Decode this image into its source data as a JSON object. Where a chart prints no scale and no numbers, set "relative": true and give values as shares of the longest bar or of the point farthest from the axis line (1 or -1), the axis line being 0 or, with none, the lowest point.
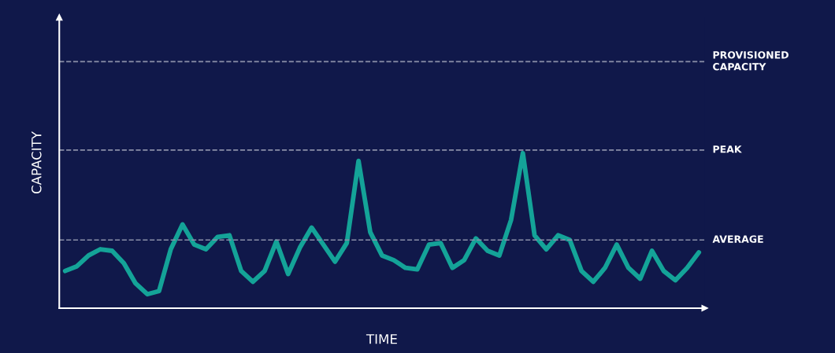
{
  "chart_data": {
    "type": "line",
    "relative": true,
    "xlabel": "TIME",
    "ylabel": "CAPACITY",
    "grid": false,
    "legend": false,
    "line_style": "solid",
    "marker": "none",
    "categories": [
      null,
      null,
      null,
      null,
      null,
      null,
      null,
      null,
      null,
      null,
      null,
      null,
      null,
      null,
      null,
      null,
      null,
      null,
      null,
      null,
      null,
      null,
      null,
      null,
      null,
      null,
      null,
      null,
      null,
      null,
      null,
      null,
      null,
      null,
      null,
      null,
      null,
      null,
      null,
      null,
      null,
      null,
      null,
      null,
      null,
      null,
      null,
      null,
      null,
      null,
      null,
      null,
      null,
      null,
      null
    ],
    "series": [
      {
        "color": "#14a398",
        "values": [
          0.24,
          0.27,
          0.34,
          0.38,
          0.37,
          0.29,
          0.16,
          0.09,
          0.11,
          0.38,
          0.54,
          0.41,
          0.38,
          0.46,
          0.47,
          0.24,
          0.17,
          0.24,
          0.43,
          0.22,
          0.39,
          0.52,
          0.41,
          0.3,
          0.42,
          0.95,
          0.49,
          0.34,
          0.31,
          0.26,
          0.25,
          0.41,
          0.42,
          0.26,
          0.31,
          0.45,
          0.37,
          0.34,
          0.57,
          1,
          0.47,
          0.38,
          0.47,
          0.44,
          0.24,
          0.17,
          0.26,
          0.41,
          0.26,
          0.19,
          0.37,
          0.24,
          0.18,
          0.26,
          0.36
        ]
      }
    ],
    "ref_lines": [
      {
        "axis": "y",
        "value": 1.59,
        "label": "PROVISIONED\nCAPACITY",
        "color": "#8a8fa8",
        "line_style": "dashed"
      },
      {
        "axis": "y",
        "value": 1.02,
        "label": "PEAK",
        "color": "#8a8fa8",
        "line_style": "dashed"
      },
      {
        "axis": "y",
        "value": 0.44,
        "label": "AVERAGE",
        "color": "#8a8fa8",
        "line_style": "dashed"
      }
    ]
  }
}
